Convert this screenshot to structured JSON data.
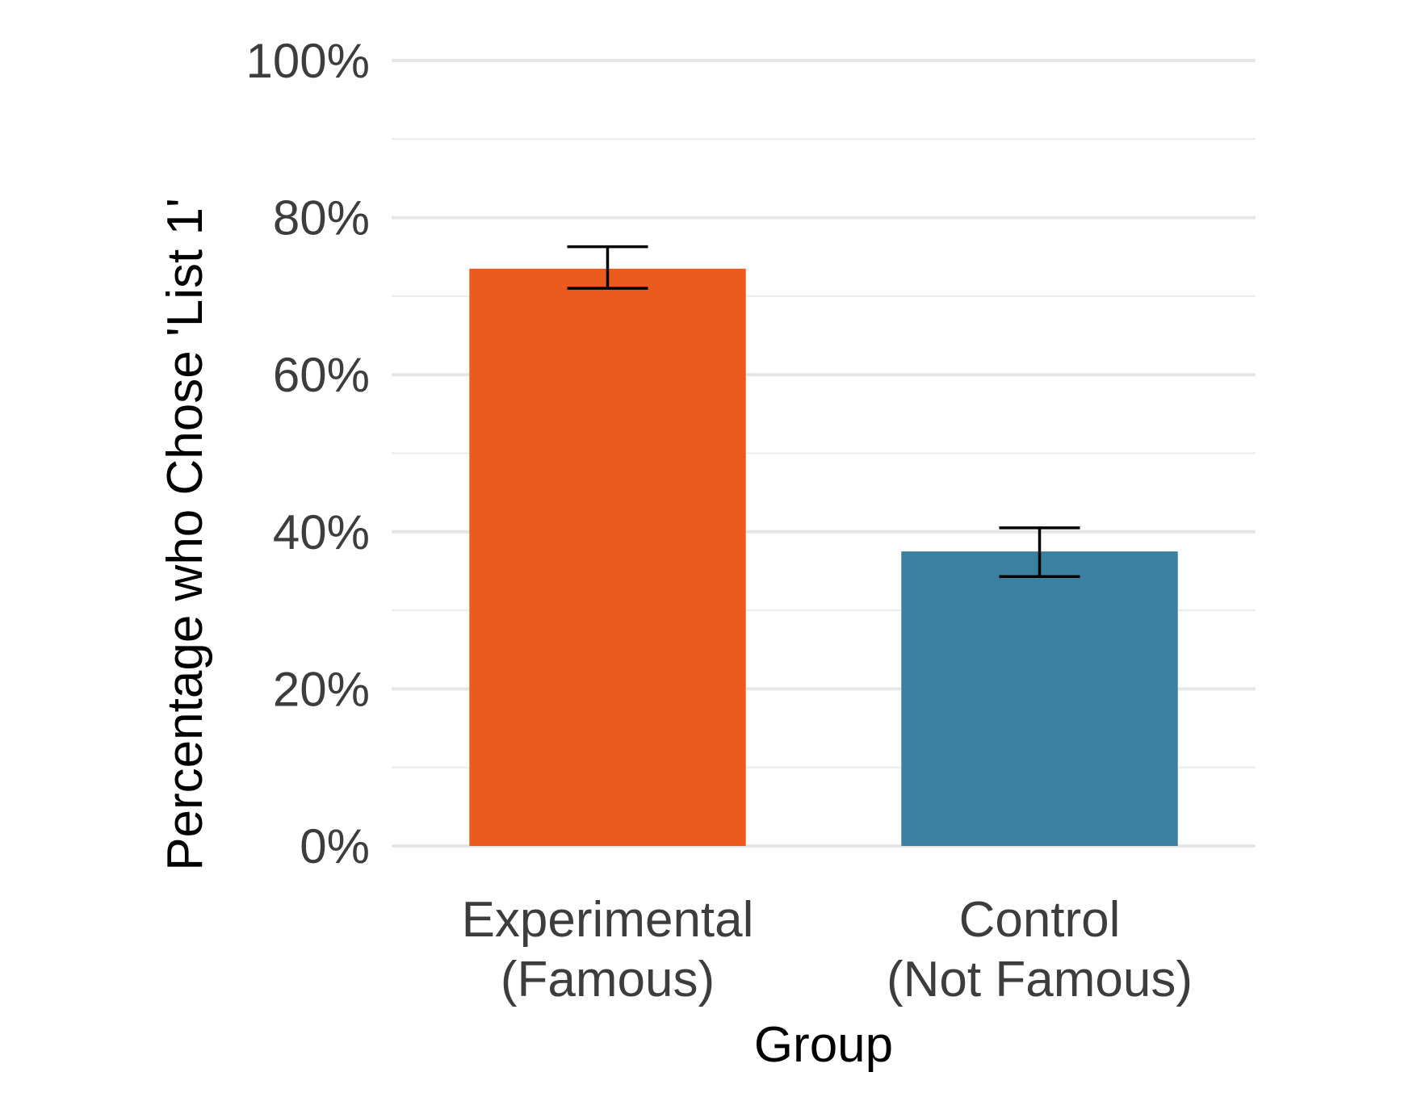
{
  "chart_data": {
    "type": "bar",
    "categories": [
      [
        "Experimental",
        "(Famous)"
      ],
      [
        "Control",
        "(Not Famous)"
      ]
    ],
    "values": [
      73.5,
      37.5
    ],
    "error": [
      {
        "low": 71,
        "high": 76.3
      },
      {
        "low": 34.3,
        "high": 40.5
      }
    ],
    "colors": [
      "#eb5b1d",
      "#3b80a0"
    ],
    "xlabel": "Group",
    "ylabel": "Percentage who Chose 'List 1'",
    "ylim": [
      0,
      100
    ],
    "yticks": [
      0,
      20,
      40,
      60,
      80,
      100
    ],
    "ytick_labels": [
      "0%",
      "20%",
      "40%",
      "60%",
      "80%",
      "100%"
    ],
    "minor_yticks": [
      10,
      30,
      50,
      70,
      90
    ],
    "grid": true
  }
}
